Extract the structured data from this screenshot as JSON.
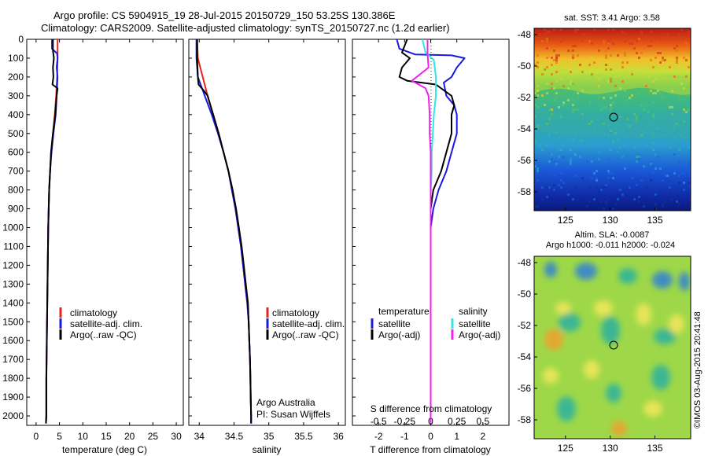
{
  "header": {
    "line1": "Argo profile: CS 5904915_19 28-Jul-2015 20150729_150 53.25S 130.386E",
    "line2": "Climatology: CARS2009. Satellite-adjusted climatology: synTS_20150727.nc (1.2d earlier)"
  },
  "colors": {
    "climatology": "#e8231c",
    "satellite": "#1a1ae0",
    "argo": "#000000",
    "satellite_s": "#33e5e5",
    "argo_s": "#ee22ee"
  },
  "chart_data": [
    {
      "type": "line",
      "panel": "temperature",
      "xlabel": "temperature (deg C)",
      "ylabel": "",
      "xlim": [
        -2,
        31.5
      ],
      "ylim": [
        2050,
        0
      ],
      "xticks": [
        0,
        5,
        10,
        15,
        20,
        25,
        30
      ],
      "yticks": [
        0,
        100,
        200,
        300,
        400,
        500,
        600,
        700,
        800,
        900,
        1000,
        1100,
        1200,
        1300,
        1400,
        1500,
        1600,
        1700,
        1800,
        1900,
        2000
      ],
      "legend": [
        "climatology",
        "satellite-adj. clim.",
        "Argo(..raw -QC)"
      ],
      "legend_position": "lower-right",
      "series": [
        {
          "name": "climatology",
          "color": "#e8231c",
          "points": [
            [
              4.6,
              0
            ],
            [
              4.6,
              100
            ],
            [
              4.5,
              200
            ],
            [
              4.3,
              300
            ],
            [
              4.0,
              400
            ],
            [
              3.6,
              500
            ],
            [
              3.2,
              600
            ],
            [
              3.0,
              700
            ],
            [
              2.8,
              800
            ],
            [
              2.7,
              900
            ],
            [
              2.6,
              1000
            ],
            [
              2.5,
              1200
            ],
            [
              2.4,
              1400
            ],
            [
              2.3,
              1600
            ],
            [
              2.2,
              1800
            ],
            [
              2.2,
              2000
            ],
            [
              2.1,
              2040
            ]
          ]
        },
        {
          "name": "satellite-adj. clim.",
          "color": "#1a1ae0",
          "points": [
            [
              3.4,
              0
            ],
            [
              3.4,
              50
            ],
            [
              4.5,
              75
            ],
            [
              4.6,
              100
            ],
            [
              4.4,
              150
            ],
            [
              4.6,
              200
            ],
            [
              4.5,
              250
            ],
            [
              4.4,
              300
            ],
            [
              4.2,
              400
            ],
            [
              3.7,
              500
            ],
            [
              3.3,
              600
            ],
            [
              3.0,
              700
            ],
            [
              2.8,
              800
            ],
            [
              2.7,
              900
            ],
            [
              2.6,
              1000
            ],
            [
              2.5,
              1200
            ],
            [
              2.4,
              1400
            ],
            [
              2.3,
              1600
            ],
            [
              2.2,
              1800
            ],
            [
              2.2,
              2000
            ],
            [
              2.1,
              2040
            ]
          ]
        },
        {
          "name": "Argo(..raw -QC)",
          "color": "#000000",
          "points": [
            [
              3.6,
              0
            ],
            [
              3.6,
              60
            ],
            [
              3.8,
              100
            ],
            [
              3.6,
              150
            ],
            [
              3.7,
              200
            ],
            [
              3.5,
              240
            ],
            [
              4.6,
              260
            ],
            [
              4.4,
              300
            ],
            [
              4.1,
              400
            ],
            [
              3.6,
              500
            ],
            [
              3.2,
              600
            ],
            [
              3.0,
              700
            ],
            [
              2.8,
              800
            ],
            [
              2.7,
              900
            ],
            [
              2.6,
              1000
            ],
            [
              2.5,
              1200
            ],
            [
              2.4,
              1400
            ],
            [
              2.3,
              1600
            ],
            [
              2.2,
              1800
            ],
            [
              2.2,
              2000
            ],
            [
              2.1,
              2040
            ]
          ]
        }
      ]
    },
    {
      "type": "line",
      "panel": "salinity",
      "xlabel": "salinity",
      "ylabel": "",
      "xlim": [
        33.85,
        36.1
      ],
      "ylim": [
        2050,
        0
      ],
      "xticks": [
        34,
        34.5,
        35,
        35.5,
        36
      ],
      "legend": [
        "climatology",
        "satellite-adj. clim.",
        "Argo(..raw -QC)"
      ],
      "legend_position": "lower-right",
      "notes": [
        "Argo Australia",
        "PI: Susan Wijffels"
      ],
      "series": [
        {
          "name": "climatology",
          "color": "#e8231c",
          "points": [
            [
              33.97,
              0
            ],
            [
              33.98,
              100
            ],
            [
              34.05,
              200
            ],
            [
              34.12,
              300
            ],
            [
              34.2,
              400
            ],
            [
              34.28,
              500
            ],
            [
              34.35,
              600
            ],
            [
              34.42,
              700
            ],
            [
              34.47,
              800
            ],
            [
              34.52,
              900
            ],
            [
              34.56,
              1000
            ],
            [
              34.6,
              1100
            ],
            [
              34.63,
              1200
            ],
            [
              34.66,
              1300
            ],
            [
              34.69,
              1400
            ],
            [
              34.71,
              1500
            ],
            [
              34.72,
              1600
            ],
            [
              34.73,
              1700
            ],
            [
              34.735,
              1800
            ],
            [
              34.74,
              1900
            ],
            [
              34.745,
              2000
            ],
            [
              34.745,
              2040
            ]
          ]
        },
        {
          "name": "satellite-adj. clim.",
          "color": "#1a1ae0",
          "points": [
            [
              33.96,
              0
            ],
            [
              33.96,
              100
            ],
            [
              33.98,
              200
            ],
            [
              34.08,
              300
            ],
            [
              34.18,
              400
            ],
            [
              34.27,
              500
            ],
            [
              34.35,
              600
            ],
            [
              34.42,
              700
            ],
            [
              34.47,
              800
            ],
            [
              34.52,
              900
            ],
            [
              34.56,
              1000
            ],
            [
              34.6,
              1100
            ],
            [
              34.63,
              1200
            ],
            [
              34.66,
              1300
            ],
            [
              34.69,
              1400
            ],
            [
              34.71,
              1500
            ],
            [
              34.72,
              1600
            ],
            [
              34.73,
              1700
            ],
            [
              34.735,
              1800
            ],
            [
              34.74,
              1900
            ],
            [
              34.745,
              2000
            ],
            [
              34.745,
              2040
            ]
          ]
        },
        {
          "name": "Argo(..raw -QC)",
          "color": "#000000",
          "points": [
            [
              33.97,
              0
            ],
            [
              33.97,
              100
            ],
            [
              33.98,
              200
            ],
            [
              33.99,
              240
            ],
            [
              34.06,
              270
            ],
            [
              34.12,
              300
            ],
            [
              34.2,
              400
            ],
            [
              34.28,
              500
            ],
            [
              34.35,
              600
            ],
            [
              34.42,
              700
            ],
            [
              34.48,
              800
            ],
            [
              34.53,
              900
            ],
            [
              34.57,
              1000
            ],
            [
              34.61,
              1100
            ],
            [
              34.64,
              1200
            ],
            [
              34.67,
              1300
            ],
            [
              34.7,
              1400
            ],
            [
              34.71,
              1500
            ],
            [
              34.72,
              1600
            ],
            [
              34.73,
              1700
            ],
            [
              34.735,
              1800
            ],
            [
              34.74,
              1900
            ],
            [
              34.745,
              2000
            ],
            [
              34.745,
              2040
            ]
          ]
        }
      ]
    },
    {
      "type": "line",
      "panel": "difference",
      "xlabel": "T difference from climatology",
      "xlabel_top": "S difference from climatology",
      "xlim": [
        -3,
        3
      ],
      "ylim": [
        2050,
        0
      ],
      "xticks": [
        -2,
        -1,
        0,
        1,
        2
      ],
      "xticks_top": [
        -0.5,
        -0.25,
        0,
        0.25,
        0.5
      ],
      "xticks_top_labels": [
        "-0.5",
        "-0.25",
        "0",
        "0.25",
        "0.5"
      ],
      "legend_left_title": "temperature",
      "legend_right_title": "salinity",
      "legend_left": [
        "satellite",
        "Argo(-adj)"
      ],
      "legend_right": [
        "satellite",
        "Argo(-adj)"
      ],
      "series": [
        {
          "name": "satellite",
          "quantity": "temperature",
          "color": "#1a1ae0",
          "points": [
            [
              -1.3,
              0
            ],
            [
              -1.2,
              50
            ],
            [
              -0.6,
              80
            ],
            [
              0.8,
              85
            ],
            [
              1.3,
              100
            ],
            [
              1.0,
              150
            ],
            [
              0.8,
              200
            ],
            [
              0.5,
              230
            ],
            [
              0.6,
              300
            ],
            [
              0.9,
              350
            ],
            [
              1.0,
              400
            ],
            [
              1.0,
              500
            ],
            [
              0.8,
              600
            ],
            [
              0.6,
              700
            ],
            [
              0.3,
              800
            ],
            [
              0.1,
              900
            ],
            [
              0,
              1000
            ],
            [
              0,
              2040
            ]
          ]
        },
        {
          "name": "Argo(-adj)",
          "quantity": "temperature",
          "color": "#000000",
          "points": [
            [
              -0.9,
              0
            ],
            [
              -1.1,
              70
            ],
            [
              -0.8,
              100
            ],
            [
              -1.1,
              150
            ],
            [
              -1.2,
              200
            ],
            [
              -0.9,
              220
            ],
            [
              0.2,
              240
            ],
            [
              0.8,
              300
            ],
            [
              0.9,
              350
            ],
            [
              0.8,
              400
            ],
            [
              0.8,
              500
            ],
            [
              0.6,
              600
            ],
            [
              0.4,
              700
            ],
            [
              0.1,
              800
            ],
            [
              0,
              900
            ],
            [
              0,
              2040
            ]
          ]
        },
        {
          "name": "satellite",
          "quantity": "salinity",
          "color": "#33e5e5",
          "points": [
            [
              -0.08,
              0
            ],
            [
              -0.05,
              70
            ],
            [
              0.03,
              110
            ],
            [
              0.05,
              200
            ],
            [
              0.05,
              300
            ],
            [
              0.03,
              400
            ],
            [
              0.02,
              500
            ],
            [
              0.01,
              600
            ],
            [
              0.01,
              700
            ],
            [
              0,
              800
            ],
            [
              0,
              1000
            ],
            [
              0,
              2040
            ]
          ]
        },
        {
          "name": "Argo(-adj)",
          "quantity": "salinity",
          "color": "#ee22ee",
          "points": [
            [
              -0.03,
              0
            ],
            [
              -0.03,
              80
            ],
            [
              -0.02,
              150
            ],
            [
              -0.18,
              220
            ],
            [
              -0.05,
              260
            ],
            [
              -0.02,
              300
            ],
            [
              -0.01,
              400
            ],
            [
              -0.01,
              500
            ],
            [
              0,
              600
            ],
            [
              0,
              2040
            ]
          ]
        }
      ]
    },
    {
      "type": "heatmap",
      "panel": "sst-map",
      "title": "sat. SST: 3.41  Argo: 3.58",
      "xticks": [
        125,
        130,
        135
      ],
      "yticks": [
        -48,
        -50,
        -52,
        -54,
        -56,
        -58
      ],
      "xlim": [
        121.5,
        139
      ],
      "ylim": [
        -59.2,
        -47.6
      ],
      "marker": {
        "lon": 130.386,
        "lat": -53.25
      }
    },
    {
      "type": "heatmap",
      "panel": "sla-map",
      "title_line1": "Altim. SLA: -0.0087",
      "title_line2": "Argo h1000: -0.011  h2000: -0.024",
      "xticks": [
        125,
        130,
        135
      ],
      "yticks": [
        -48,
        -50,
        -52,
        -54,
        -56,
        -58
      ],
      "xlim": [
        121.5,
        139
      ],
      "ylim": [
        -59.2,
        -47.6
      ],
      "marker": {
        "lon": 130.386,
        "lat": -53.25
      },
      "side_label": "©IMOS 03-Aug-2015 20:41:48"
    }
  ]
}
